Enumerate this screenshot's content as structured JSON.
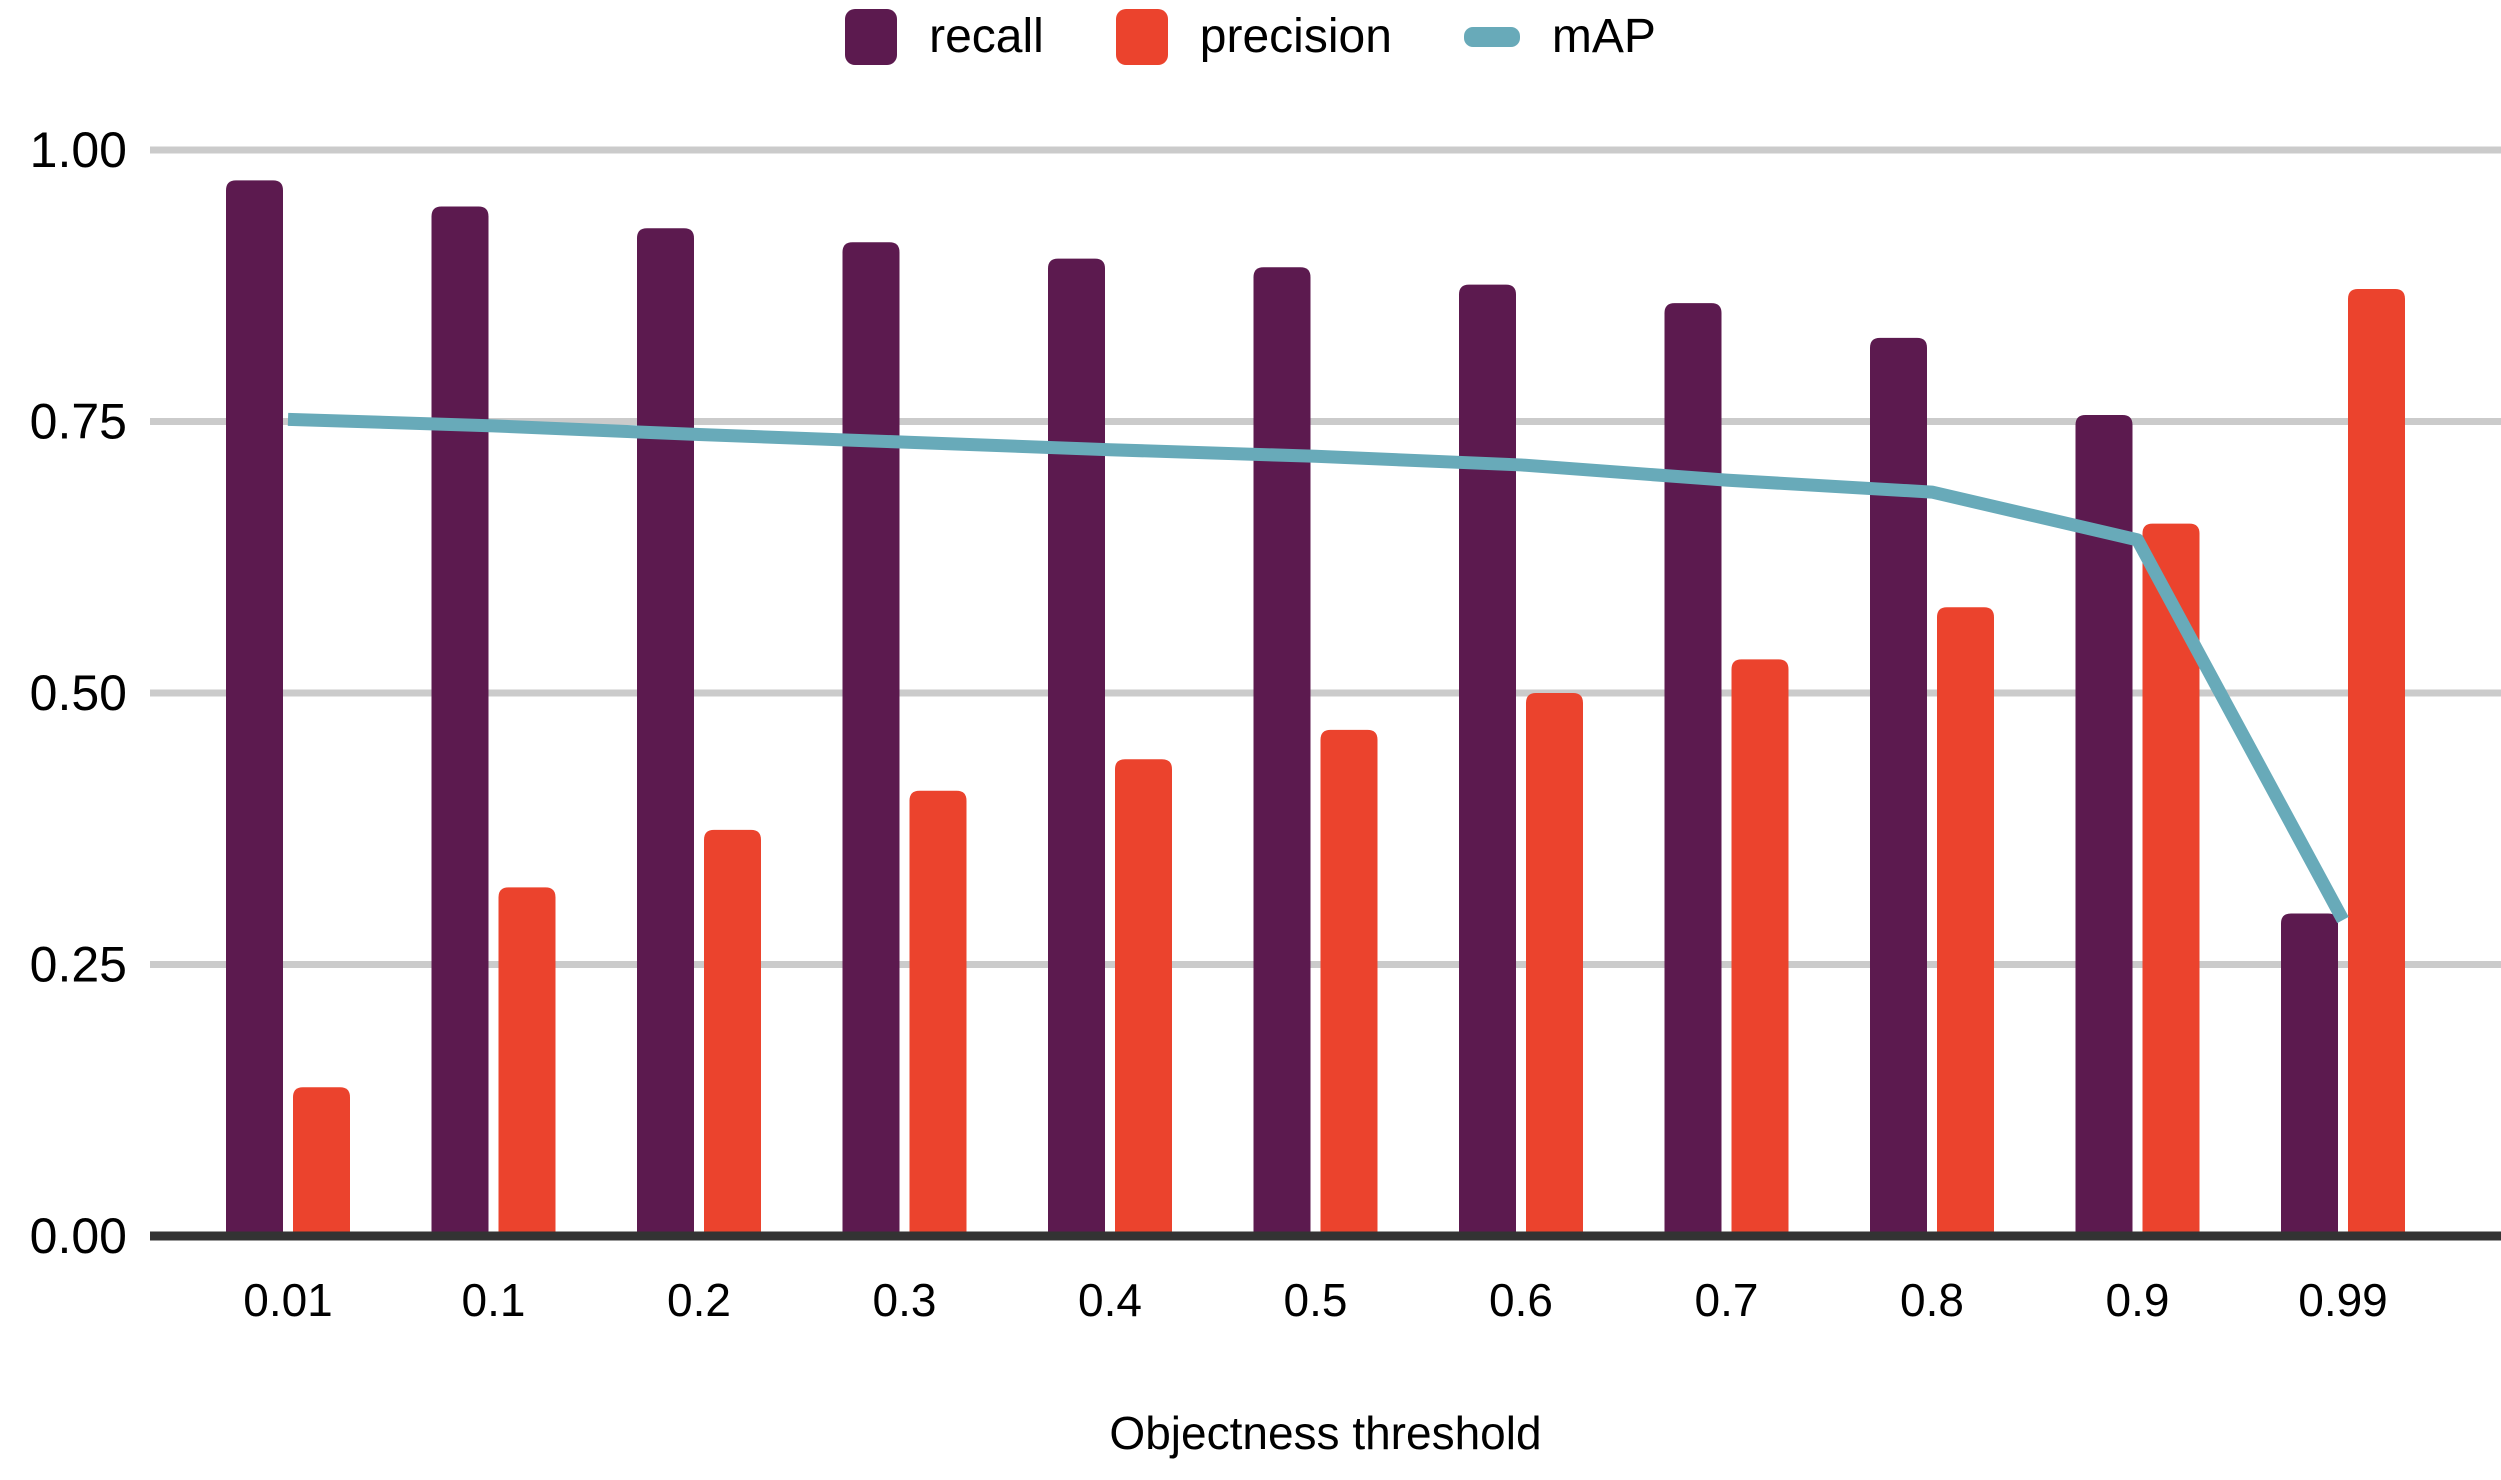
{
  "chart_data": {
    "type": "bar",
    "title": "",
    "xlabel": "Objectness threshold",
    "ylabel": "",
    "categories": [
      "0.01",
      "0.1",
      "0.2",
      "0.3",
      "0.4",
      "0.5",
      "0.6",
      "0.7",
      "0.8",
      "0.9",
      "0.99"
    ],
    "y_ticks": [
      "0.00",
      "0.25",
      "0.50",
      "0.75",
      "1.00"
    ],
    "ylim": [
      0,
      1.0
    ],
    "grid": "horizontal-only",
    "legend_position": "top-center",
    "series": [
      {
        "name": "recall",
        "type": "bar",
        "color": "#5C1A4F",
        "values": [
          0.972,
          0.948,
          0.928,
          0.915,
          0.9,
          0.892,
          0.876,
          0.859,
          0.827,
          0.756,
          0.297
        ]
      },
      {
        "name": "precision",
        "type": "bar",
        "color": "#EB432D",
        "values": [
          0.137,
          0.321,
          0.374,
          0.41,
          0.439,
          0.466,
          0.5,
          0.531,
          0.579,
          0.656,
          0.872
        ]
      },
      {
        "name": "mAP",
        "type": "line",
        "color": "#68AAB9",
        "values": [
          0.752,
          0.746,
          0.738,
          0.731,
          0.724,
          0.718,
          0.71,
          0.696,
          0.685,
          0.641,
          0.291
        ]
      }
    ]
  },
  "colors": {
    "grid": "#CBCBCB",
    "axis_line": "#333333",
    "text": "#000000",
    "background": "#FFFFFF"
  }
}
